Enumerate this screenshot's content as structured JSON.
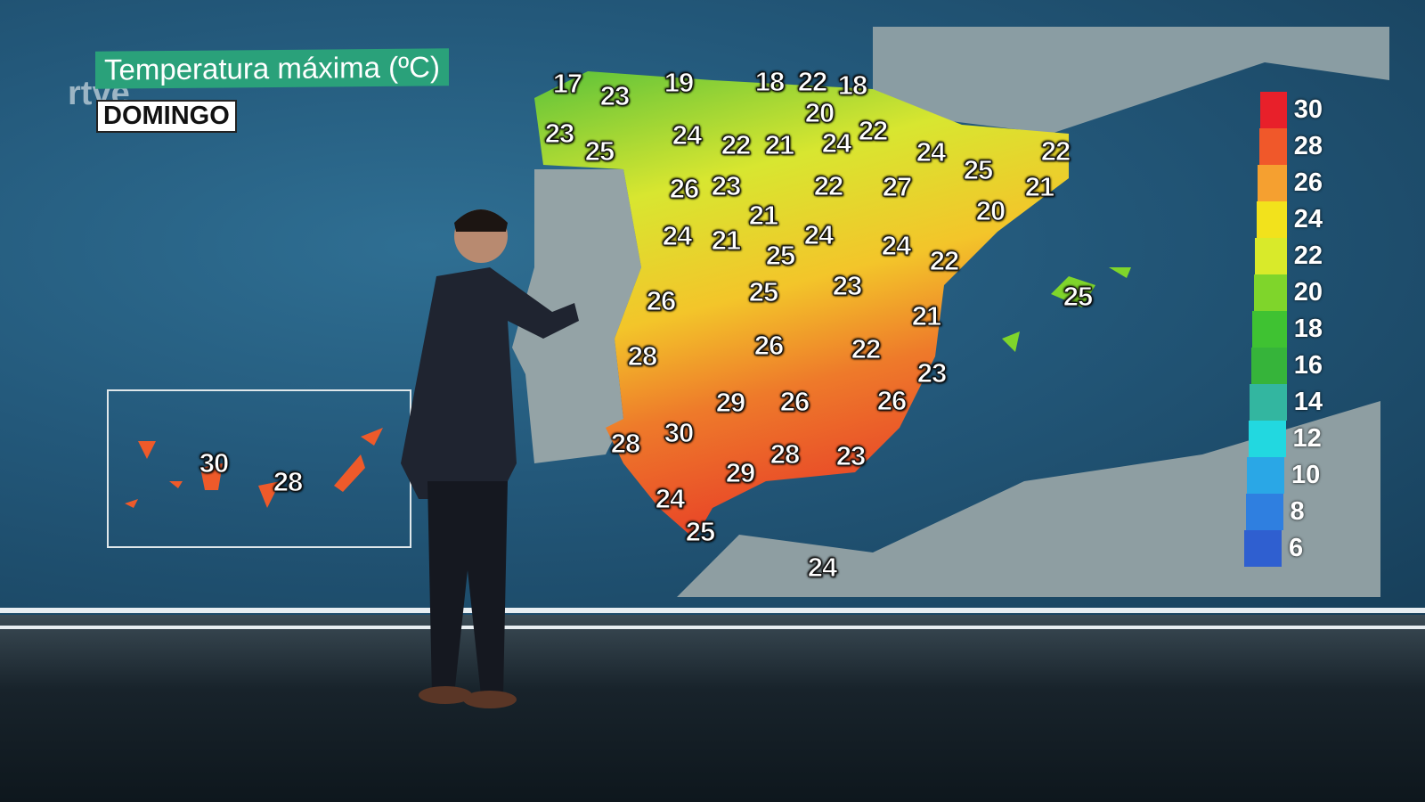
{
  "header": {
    "title": "Temperatura máxima (ºC)",
    "day": "DOMINGO",
    "logo": "rtve"
  },
  "temperatures": [
    "17",
    "23",
    "19",
    "18",
    "22",
    "18",
    "20",
    "23",
    "25",
    "24",
    "22",
    "21",
    "24",
    "22",
    "24",
    "25",
    "22",
    "21",
    "20",
    "26",
    "23",
    "22",
    "27",
    "21",
    "24",
    "21",
    "25",
    "24",
    "24",
    "22",
    "25",
    "26",
    "25",
    "23",
    "21",
    "28",
    "26",
    "22",
    "23",
    "29",
    "26",
    "26",
    "30",
    "28",
    "28",
    "23",
    "29",
    "24",
    "25",
    "24"
  ],
  "canarias": [
    "30",
    "28"
  ],
  "legend": {
    "items": [
      {
        "value": "30",
        "color": "#e8202a"
      },
      {
        "value": "28",
        "color": "#f0582a"
      },
      {
        "value": "26",
        "color": "#f5a030"
      },
      {
        "value": "24",
        "color": "#f2e21c"
      },
      {
        "value": "22",
        "color": "#d9ea2a"
      },
      {
        "value": "20",
        "color": "#7fd52b"
      },
      {
        "value": "18",
        "color": "#3fc232"
      },
      {
        "value": "16",
        "color": "#36b43a"
      },
      {
        "value": "14",
        "color": "#33b6a0"
      },
      {
        "value": "12",
        "color": "#22d8e0"
      },
      {
        "value": "10",
        "color": "#2aa7e6"
      },
      {
        "value": "8",
        "color": "#2f7fe0"
      },
      {
        "value": "6",
        "color": "#2f5fd0"
      }
    ]
  }
}
